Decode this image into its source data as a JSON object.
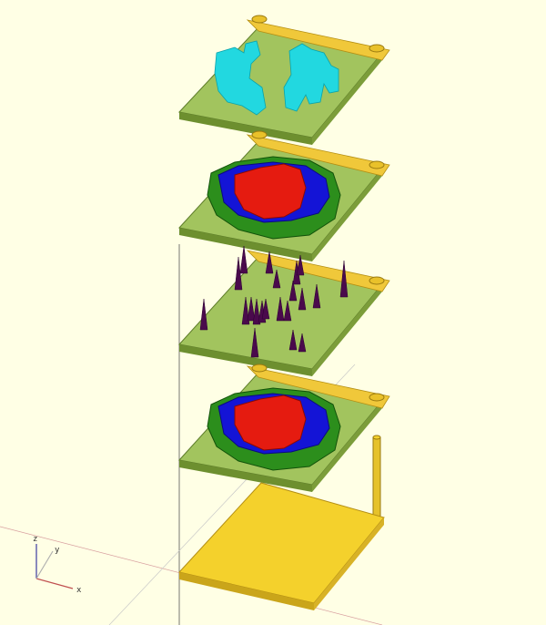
{
  "viewport": {
    "background": "#ffffe5",
    "view": "3d-model-preview"
  },
  "axes": {
    "labels": {
      "x": "x",
      "y": "y",
      "z": "z"
    },
    "color_x": "#c05050",
    "color_y": "#b0b0b0",
    "color_z": "#3a3aa0"
  },
  "colors": {
    "base_plate_top": "#f4d12c",
    "base_plate_side": "#caa51a",
    "board_top": "#a2c45e",
    "board_edge": "#5e7d2a",
    "header_strip": "#f0c83a",
    "pillar": "#e6c22a",
    "cyan_blocks": "#22d8e0",
    "red_blocks": "#e51b10",
    "blue_blocks": "#1414d6",
    "green_blocks": "#2c8e1c",
    "spikes": "#4a0a4c"
  },
  "layers": [
    {
      "id": "layer-1",
      "content": "cyan-voxel-map"
    },
    {
      "id": "layer-2",
      "content": "heightmap-red-blue-green"
    },
    {
      "id": "layer-3",
      "content": "purple-spikes"
    },
    {
      "id": "layer-4",
      "content": "heightmap-red-blue-green"
    },
    {
      "id": "base",
      "content": "base-plate-with-pillar"
    }
  ]
}
